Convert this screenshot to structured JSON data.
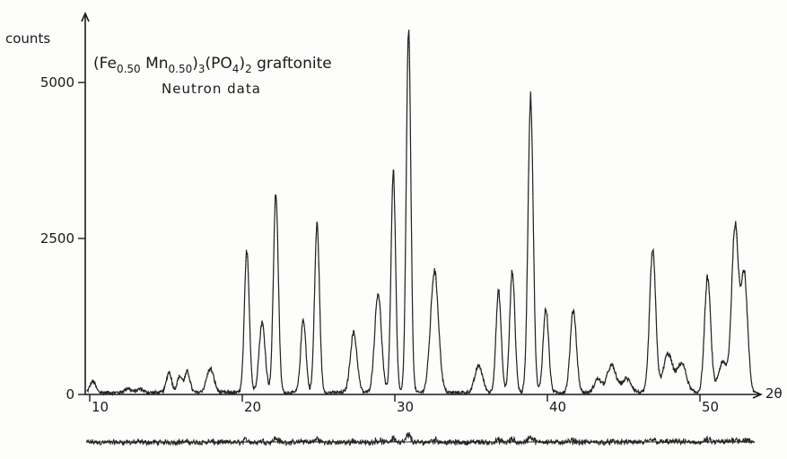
{
  "chart_data": {
    "type": "line",
    "title_parts": [
      "(Fe",
      "0.50",
      " Mn",
      "0.50",
      ")",
      "3",
      "(PO",
      "4",
      ")",
      "2",
      " graftonite"
    ],
    "subtitle": "Neutron data",
    "ylabel": "counts",
    "xlabel": "2θ",
    "xlim": [
      9,
      54
    ],
    "ylim": [
      0,
      6000
    ],
    "x_ticks": [
      {
        "value": 10,
        "label": "10"
      },
      {
        "value": 20,
        "label": "20"
      },
      {
        "value": 30,
        "label": "30"
      },
      {
        "value": 40,
        "label": "40"
      },
      {
        "value": 50,
        "label": "50"
      }
    ],
    "y_ticks": [
      {
        "value": 0,
        "label": "0"
      },
      {
        "value": 2500,
        "label": "2500"
      },
      {
        "value": 5000,
        "label": "5000"
      }
    ],
    "background": 30,
    "peaks": [
      {
        "x": 10.2,
        "height": 180,
        "width": 0.18
      },
      {
        "x": 12.5,
        "height": 70,
        "width": 0.2
      },
      {
        "x": 13.3,
        "height": 60,
        "width": 0.2
      },
      {
        "x": 15.2,
        "height": 330,
        "width": 0.17
      },
      {
        "x": 15.9,
        "height": 260,
        "width": 0.17
      },
      {
        "x": 16.4,
        "height": 330,
        "width": 0.17
      },
      {
        "x": 17.9,
        "height": 380,
        "width": 0.24
      },
      {
        "x": 20.3,
        "height": 2280,
        "width": 0.16
      },
      {
        "x": 21.3,
        "height": 1120,
        "width": 0.2
      },
      {
        "x": 22.2,
        "height": 3200,
        "width": 0.16
      },
      {
        "x": 24.0,
        "height": 1180,
        "width": 0.17
      },
      {
        "x": 24.9,
        "height": 2700,
        "width": 0.16
      },
      {
        "x": 27.3,
        "height": 960,
        "width": 0.22
      },
      {
        "x": 28.9,
        "height": 1600,
        "width": 0.22
      },
      {
        "x": 29.9,
        "height": 3550,
        "width": 0.15
      },
      {
        "x": 30.9,
        "height": 5800,
        "width": 0.15
      },
      {
        "x": 32.6,
        "height": 1950,
        "width": 0.26
      },
      {
        "x": 35.5,
        "height": 430,
        "width": 0.25
      },
      {
        "x": 36.8,
        "height": 1620,
        "width": 0.17
      },
      {
        "x": 37.7,
        "height": 1950,
        "width": 0.17
      },
      {
        "x": 38.9,
        "height": 4750,
        "width": 0.17
      },
      {
        "x": 39.9,
        "height": 1350,
        "width": 0.18
      },
      {
        "x": 41.7,
        "height": 1330,
        "width": 0.2
      },
      {
        "x": 43.3,
        "height": 220,
        "width": 0.22
      },
      {
        "x": 44.2,
        "height": 430,
        "width": 0.3
      },
      {
        "x": 45.2,
        "height": 220,
        "width": 0.3
      },
      {
        "x": 46.9,
        "height": 2280,
        "width": 0.2
      },
      {
        "x": 47.9,
        "height": 620,
        "width": 0.3
      },
      {
        "x": 48.8,
        "height": 470,
        "width": 0.3
      },
      {
        "x": 50.5,
        "height": 1850,
        "width": 0.2
      },
      {
        "x": 51.5,
        "height": 480,
        "width": 0.3
      },
      {
        "x": 52.3,
        "height": 2650,
        "width": 0.22
      },
      {
        "x": 52.9,
        "height": 1900,
        "width": 0.22
      }
    ],
    "grid": false,
    "legend": "none"
  }
}
